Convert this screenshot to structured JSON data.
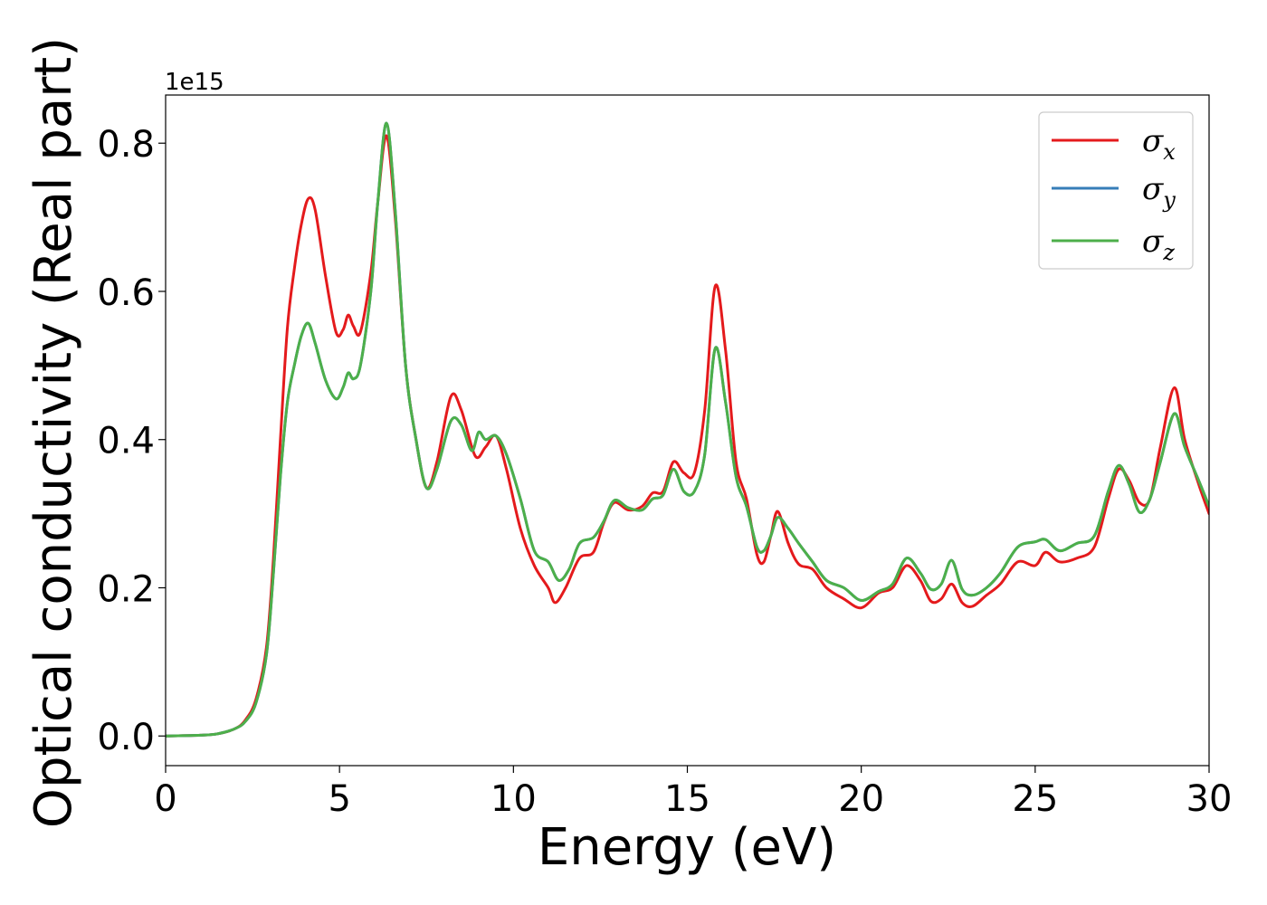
{
  "chart_data": {
    "type": "line",
    "title": "",
    "xlabel": "Energy (eV)",
    "ylabel": "Optical conductivity (Real part)",
    "y_offset_text": "1e15",
    "xlim": [
      0,
      30
    ],
    "ylim": [
      -0.04,
      0.865
    ],
    "x_ticks": [
      0,
      5,
      10,
      15,
      20,
      25,
      30
    ],
    "x_tick_labels": [
      "0",
      "5",
      "10",
      "15",
      "20",
      "25",
      "30"
    ],
    "y_ticks": [
      0.0,
      0.2,
      0.4,
      0.6,
      0.8
    ],
    "y_tick_labels": [
      "0.0",
      "0.2",
      "0.4",
      "0.6",
      "0.8"
    ],
    "grid": false,
    "legend_position": "top-right",
    "series": [
      {
        "name": "σx",
        "symbol": "σ",
        "subscript": "x",
        "color": "#e41a1c",
        "x": [
          0,
          1,
          1.5,
          2,
          2.3,
          2.6,
          2.9,
          3.1,
          3.3,
          3.5,
          3.7,
          3.9,
          4.1,
          4.3,
          4.6,
          4.9,
          5.1,
          5.25,
          5.4,
          5.6,
          5.9,
          6.1,
          6.35,
          6.6,
          6.9,
          7.2,
          7.5,
          7.8,
          8.2,
          8.5,
          8.9,
          9.2,
          9.5,
          9.8,
          10.2,
          10.6,
          11.0,
          11.2,
          11.5,
          11.9,
          12.3,
          12.6,
          12.9,
          13.3,
          13.7,
          14.0,
          14.3,
          14.6,
          14.9,
          15.2,
          15.5,
          15.8,
          16.1,
          16.4,
          16.7,
          17.0,
          17.2,
          17.4,
          17.6,
          17.9,
          18.2,
          18.6,
          19.0,
          19.5,
          20.0,
          20.5,
          20.9,
          21.3,
          21.7,
          22.0,
          22.3,
          22.6,
          22.9,
          23.2,
          23.6,
          24.0,
          24.5,
          25.0,
          25.3,
          25.7,
          26.2,
          26.7,
          27.1,
          27.4,
          27.7,
          28.0,
          28.3,
          28.6,
          29.0,
          29.3,
          29.7,
          30.0
        ],
        "y": [
          0.0,
          0.001,
          0.003,
          0.01,
          0.022,
          0.05,
          0.12,
          0.24,
          0.4,
          0.55,
          0.63,
          0.69,
          0.725,
          0.71,
          0.62,
          0.545,
          0.548,
          0.568,
          0.553,
          0.545,
          0.625,
          0.72,
          0.81,
          0.7,
          0.5,
          0.4,
          0.335,
          0.37,
          0.458,
          0.44,
          0.378,
          0.39,
          0.405,
          0.36,
          0.28,
          0.23,
          0.2,
          0.18,
          0.2,
          0.24,
          0.248,
          0.288,
          0.315,
          0.305,
          0.31,
          0.328,
          0.33,
          0.37,
          0.355,
          0.355,
          0.44,
          0.607,
          0.52,
          0.37,
          0.32,
          0.245,
          0.235,
          0.27,
          0.303,
          0.26,
          0.232,
          0.225,
          0.2,
          0.185,
          0.173,
          0.193,
          0.2,
          0.23,
          0.21,
          0.182,
          0.185,
          0.205,
          0.18,
          0.175,
          0.19,
          0.205,
          0.235,
          0.23,
          0.248,
          0.235,
          0.24,
          0.255,
          0.32,
          0.36,
          0.345,
          0.315,
          0.32,
          0.39,
          0.47,
          0.4,
          0.34,
          0.3
        ]
      },
      {
        "name": "σy",
        "symbol": "σ",
        "subscript": "y",
        "color": "#377eb8",
        "x": [
          0,
          1,
          1.5,
          2,
          2.3,
          2.6,
          2.9,
          3.1,
          3.3,
          3.5,
          3.7,
          3.9,
          4.1,
          4.3,
          4.6,
          4.9,
          5.1,
          5.25,
          5.4,
          5.6,
          5.9,
          6.1,
          6.35,
          6.6,
          6.9,
          7.2,
          7.5,
          7.8,
          8.2,
          8.5,
          8.8,
          9.0,
          9.2,
          9.5,
          9.8,
          10.2,
          10.6,
          11.0,
          11.3,
          11.6,
          11.9,
          12.3,
          12.6,
          12.9,
          13.3,
          13.7,
          14.0,
          14.3,
          14.6,
          14.9,
          15.2,
          15.5,
          15.8,
          16.1,
          16.4,
          16.7,
          17.0,
          17.2,
          17.4,
          17.6,
          17.9,
          18.2,
          18.6,
          19.0,
          19.5,
          20.0,
          20.5,
          20.9,
          21.3,
          21.7,
          22.0,
          22.3,
          22.6,
          22.9,
          23.2,
          23.6,
          24.0,
          24.5,
          25.0,
          25.3,
          25.7,
          26.2,
          26.7,
          27.1,
          27.4,
          27.7,
          28.0,
          28.3,
          28.6,
          29.0,
          29.3,
          29.7,
          30.0
        ],
        "y": [
          0.0,
          0.001,
          0.003,
          0.01,
          0.02,
          0.045,
          0.11,
          0.22,
          0.35,
          0.45,
          0.5,
          0.54,
          0.557,
          0.53,
          0.48,
          0.455,
          0.47,
          0.49,
          0.482,
          0.5,
          0.6,
          0.72,
          0.827,
          0.71,
          0.5,
          0.4,
          0.335,
          0.36,
          0.425,
          0.42,
          0.385,
          0.41,
          0.4,
          0.405,
          0.38,
          0.32,
          0.25,
          0.235,
          0.21,
          0.225,
          0.26,
          0.268,
          0.29,
          0.318,
          0.308,
          0.305,
          0.32,
          0.325,
          0.36,
          0.33,
          0.33,
          0.38,
          0.523,
          0.45,
          0.35,
          0.31,
          0.255,
          0.25,
          0.27,
          0.295,
          0.28,
          0.26,
          0.235,
          0.21,
          0.2,
          0.183,
          0.195,
          0.205,
          0.24,
          0.22,
          0.198,
          0.205,
          0.237,
          0.198,
          0.19,
          0.2,
          0.22,
          0.255,
          0.262,
          0.265,
          0.25,
          0.26,
          0.27,
          0.33,
          0.365,
          0.34,
          0.302,
          0.32,
          0.37,
          0.435,
          0.39,
          0.345,
          0.31
        ]
      },
      {
        "name": "σz",
        "symbol": "σ",
        "subscript": "z",
        "color": "#4daf4a",
        "x": [
          0,
          1,
          1.5,
          2,
          2.3,
          2.6,
          2.9,
          3.1,
          3.3,
          3.5,
          3.7,
          3.9,
          4.1,
          4.3,
          4.6,
          4.9,
          5.1,
          5.25,
          5.4,
          5.6,
          5.9,
          6.1,
          6.35,
          6.6,
          6.9,
          7.2,
          7.5,
          7.8,
          8.2,
          8.5,
          8.8,
          9.0,
          9.2,
          9.5,
          9.8,
          10.2,
          10.6,
          11.0,
          11.3,
          11.6,
          11.9,
          12.3,
          12.6,
          12.9,
          13.3,
          13.7,
          14.0,
          14.3,
          14.6,
          14.9,
          15.2,
          15.5,
          15.8,
          16.1,
          16.4,
          16.7,
          17.0,
          17.2,
          17.4,
          17.6,
          17.9,
          18.2,
          18.6,
          19.0,
          19.5,
          20.0,
          20.5,
          20.9,
          21.3,
          21.7,
          22.0,
          22.3,
          22.6,
          22.9,
          23.2,
          23.6,
          24.0,
          24.5,
          25.0,
          25.3,
          25.7,
          26.2,
          26.7,
          27.1,
          27.4,
          27.7,
          28.0,
          28.3,
          28.6,
          29.0,
          29.3,
          29.7,
          30.0
        ],
        "y": [
          0.0,
          0.001,
          0.003,
          0.01,
          0.02,
          0.045,
          0.11,
          0.22,
          0.35,
          0.45,
          0.5,
          0.54,
          0.557,
          0.53,
          0.48,
          0.455,
          0.47,
          0.49,
          0.482,
          0.5,
          0.6,
          0.72,
          0.827,
          0.71,
          0.5,
          0.4,
          0.335,
          0.36,
          0.425,
          0.42,
          0.385,
          0.41,
          0.4,
          0.405,
          0.38,
          0.32,
          0.25,
          0.235,
          0.21,
          0.225,
          0.26,
          0.268,
          0.29,
          0.318,
          0.308,
          0.305,
          0.32,
          0.325,
          0.36,
          0.33,
          0.33,
          0.38,
          0.523,
          0.45,
          0.35,
          0.31,
          0.255,
          0.25,
          0.27,
          0.295,
          0.28,
          0.26,
          0.235,
          0.21,
          0.2,
          0.183,
          0.195,
          0.205,
          0.24,
          0.22,
          0.198,
          0.205,
          0.237,
          0.198,
          0.19,
          0.2,
          0.22,
          0.255,
          0.262,
          0.265,
          0.25,
          0.26,
          0.27,
          0.33,
          0.365,
          0.34,
          0.302,
          0.32,
          0.37,
          0.435,
          0.39,
          0.345,
          0.31
        ]
      }
    ]
  }
}
